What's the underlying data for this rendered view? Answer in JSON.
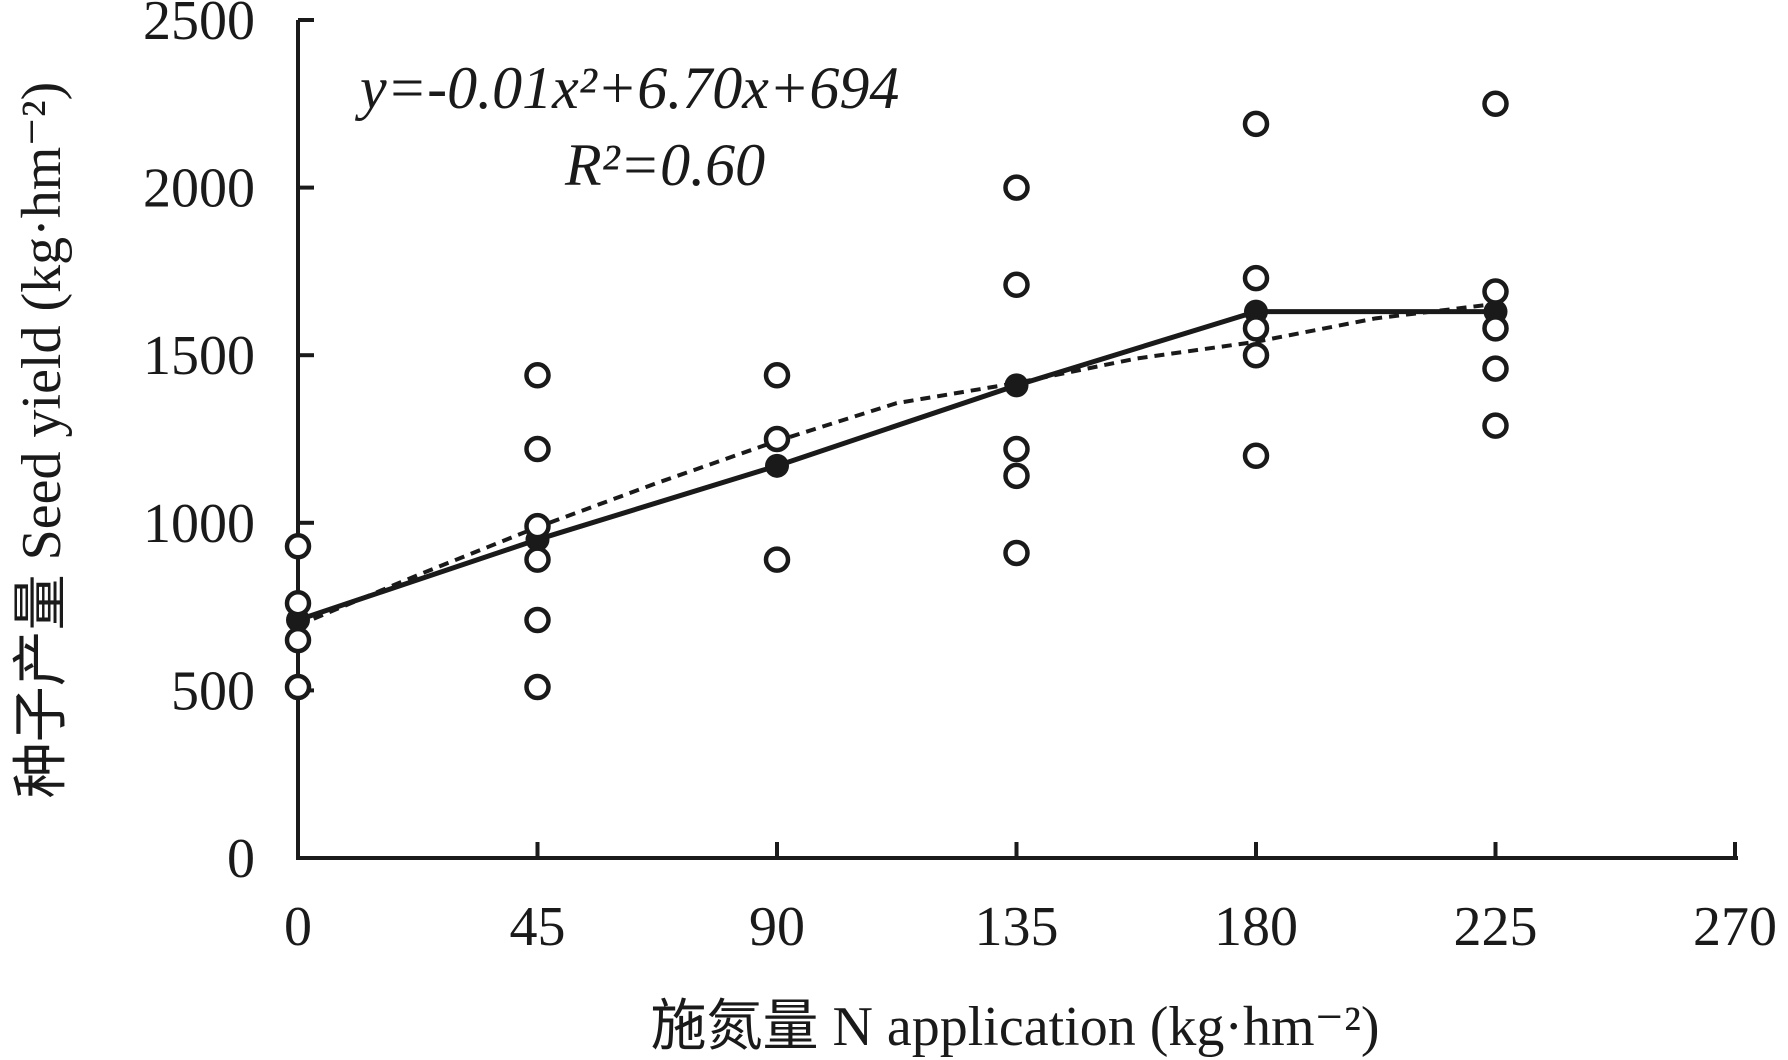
{
  "chart_data": {
    "type": "scatter",
    "x_axis": {
      "label": "施氮量 N application (kg·hm⁻²)",
      "range": [
        0,
        270
      ],
      "ticks": [
        0,
        45,
        90,
        135,
        180,
        225,
        270
      ]
    },
    "y_axis": {
      "label": "种子产量 Seed yield (kg·hm⁻²)",
      "range": [
        0,
        2500
      ],
      "ticks": [
        0,
        500,
        1000,
        1500,
        2000,
        2500
      ]
    },
    "series": [
      {
        "style": "open-circle",
        "points": [
          [
            0,
            930
          ],
          [
            0,
            760
          ],
          [
            0,
            650
          ],
          [
            0,
            510
          ],
          [
            45,
            1440
          ],
          [
            45,
            1220
          ],
          [
            45,
            990
          ],
          [
            45,
            890
          ],
          [
            45,
            710
          ],
          [
            45,
            510
          ],
          [
            90,
            1440
          ],
          [
            90,
            1250
          ],
          [
            90,
            890
          ],
          [
            135,
            2000
          ],
          [
            135,
            1710
          ],
          [
            135,
            1220
          ],
          [
            135,
            1140
          ],
          [
            135,
            910
          ],
          [
            180,
            2190
          ],
          [
            180,
            1730
          ],
          [
            180,
            1580
          ],
          [
            180,
            1500
          ],
          [
            180,
            1200
          ],
          [
            225,
            2250
          ],
          [
            225,
            1690
          ],
          [
            225,
            1580
          ],
          [
            225,
            1460
          ],
          [
            225,
            1290
          ]
        ]
      },
      {
        "style": "filled-circle-line",
        "points": [
          [
            0,
            710
          ],
          [
            45,
            950
          ],
          [
            90,
            1170
          ],
          [
            135,
            1410
          ],
          [
            180,
            1630
          ],
          [
            225,
            1630
          ]
        ]
      },
      {
        "style": "dashed-fit",
        "points": [
          [
            0,
            694
          ],
          [
            22.5,
            844
          ],
          [
            45,
            987
          ],
          [
            67.5,
            1119
          ],
          [
            90,
            1244
          ],
          [
            112.5,
            1357
          ],
          [
            135,
            1417
          ],
          [
            157.5,
            1490
          ],
          [
            180,
            1540
          ],
          [
            202.5,
            1610
          ],
          [
            225,
            1653
          ]
        ]
      }
    ],
    "annotations": {
      "equation": "y=-0.01x²+6.70x+694",
      "r_squared": "R²=0.60"
    },
    "grid": false,
    "legend": "none"
  }
}
